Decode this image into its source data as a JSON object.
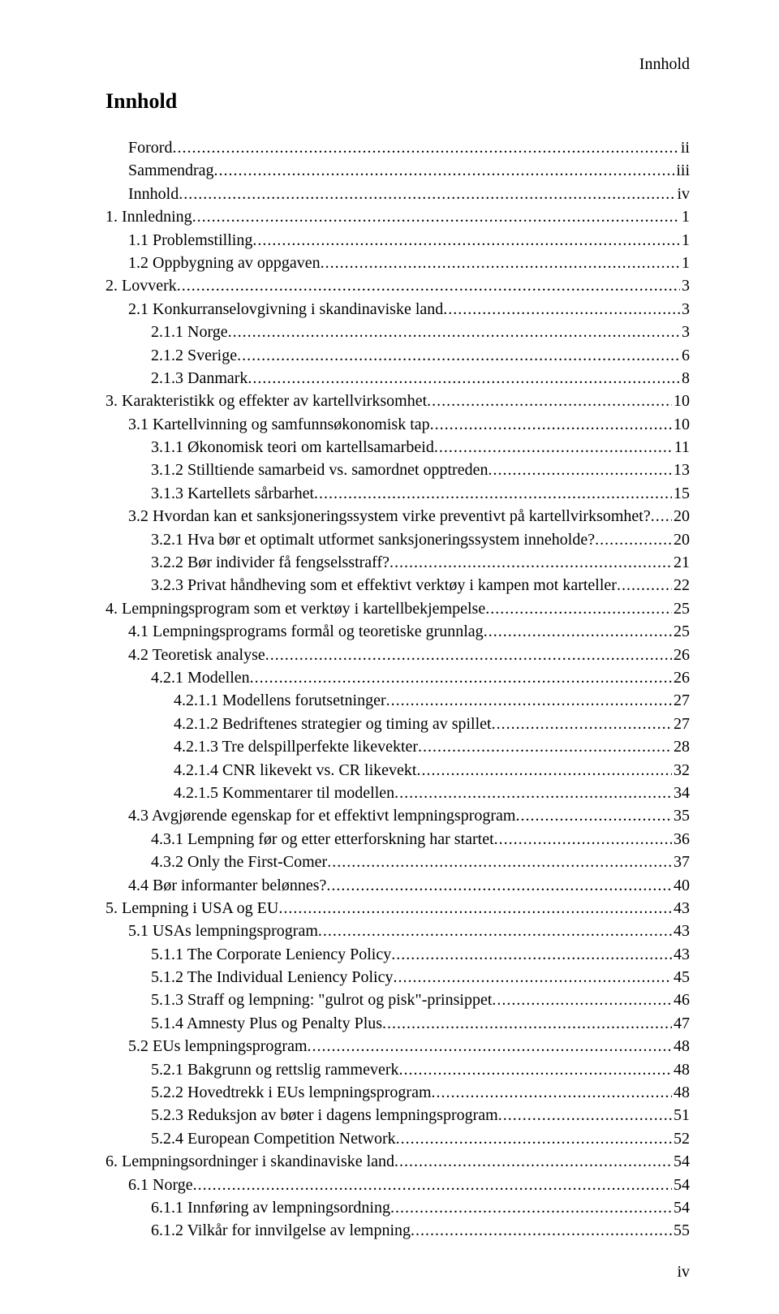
{
  "header": {
    "right_label": "Innhold"
  },
  "title": "Innhold",
  "page_number": "iv",
  "toc": [
    {
      "label": "Forord",
      "page": "ii",
      "indent": 1
    },
    {
      "label": "Sammendrag",
      "page": "iii",
      "indent": 1
    },
    {
      "label": "Innhold",
      "page": "iv",
      "indent": 1
    },
    {
      "label": "1. Innledning",
      "page": "1",
      "indent": 0
    },
    {
      "label": "1.1 Problemstilling",
      "page": "1",
      "indent": 1
    },
    {
      "label": "1.2 Oppbygning av oppgaven",
      "page": "1",
      "indent": 1
    },
    {
      "label": "2. Lovverk",
      "page": "3",
      "indent": 0
    },
    {
      "label": "2.1 Konkurranselovgivning i skandinaviske land",
      "page": "3",
      "indent": 1
    },
    {
      "label": "2.1.1 Norge",
      "page": "3",
      "indent": 2
    },
    {
      "label": "2.1.2 Sverige",
      "page": "6",
      "indent": 2
    },
    {
      "label": "2.1.3 Danmark",
      "page": "8",
      "indent": 2
    },
    {
      "label": "3. Karakteristikk og effekter av kartellvirksomhet",
      "page": "10",
      "indent": 0
    },
    {
      "label": "3.1 Kartellvinning og samfunnsøkonomisk tap",
      "page": "10",
      "indent": 1
    },
    {
      "label": "3.1.1 Økonomisk teori om kartellsamarbeid",
      "page": "11",
      "indent": 2
    },
    {
      "label": "3.1.2 Stilltiende samarbeid vs. samordnet opptreden",
      "page": "13",
      "indent": 2
    },
    {
      "label": "3.1.3 Kartellets sårbarhet",
      "page": "15",
      "indent": 2
    },
    {
      "label": "3.2 Hvordan kan et sanksjoneringssystem virke preventivt på kartellvirksomhet?",
      "page": "20",
      "indent": 1
    },
    {
      "label": "3.2.1 Hva bør et optimalt utformet sanksjoneringssystem inneholde?",
      "page": "20",
      "indent": 2
    },
    {
      "label": "3.2.2 Bør individer få fengselsstraff?",
      "page": "21",
      "indent": 2
    },
    {
      "label": "3.2.3 Privat håndheving som et effektivt verktøy i kampen mot karteller",
      "page": "22",
      "indent": 2
    },
    {
      "label": "4. Lempningsprogram som et verktøy i kartellbekjempelse",
      "page": "25",
      "indent": 0
    },
    {
      "label": "4.1 Lempningsprograms formål og teoretiske grunnlag",
      "page": "25",
      "indent": 1
    },
    {
      "label": "4.2 Teoretisk analyse",
      "page": "26",
      "indent": 1
    },
    {
      "label": "4.2.1 Modellen",
      "page": "26",
      "indent": 2
    },
    {
      "label": "4.2.1.1 Modellens forutsetninger",
      "page": "27",
      "indent": 3
    },
    {
      "label": "4.2.1.2 Bedriftenes strategier og timing av spillet",
      "page": "27",
      "indent": 3
    },
    {
      "label": "4.2.1.3 Tre delspillperfekte likevekter",
      "page": "28",
      "indent": 3
    },
    {
      "label": "4.2.1.4 CNR likevekt vs. CR likevekt",
      "page": "32",
      "indent": 3
    },
    {
      "label": "4.2.1.5 Kommentarer til modellen",
      "page": "34",
      "indent": 3
    },
    {
      "label": "4.3 Avgjørende egenskap for et effektivt lempningsprogram",
      "page": "35",
      "indent": 1
    },
    {
      "label": "4.3.1 Lempning før og etter etterforskning har startet",
      "page": "36",
      "indent": 2
    },
    {
      "label": "4.3.2 Only the First-Comer",
      "page": "37",
      "indent": 2
    },
    {
      "label": "4.4 Bør informanter belønnes?",
      "page": "40",
      "indent": 1
    },
    {
      "label": "5. Lempning i USA og EU",
      "page": "43",
      "indent": 0
    },
    {
      "label": "5.1 USAs lempningsprogram",
      "page": "43",
      "indent": 1
    },
    {
      "label": "5.1.1 The Corporate Leniency Policy",
      "page": "43",
      "indent": 2
    },
    {
      "label": "5.1.2 The Individual Leniency Policy",
      "page": "45",
      "indent": 2
    },
    {
      "label": "5.1.3 Straff og lempning: \"gulrot og pisk\"-prinsippet",
      "page": "46",
      "indent": 2
    },
    {
      "label": "5.1.4 Amnesty Plus og Penalty Plus",
      "page": "47",
      "indent": 2
    },
    {
      "label": "5.2 EUs lempningsprogram",
      "page": "48",
      "indent": 1
    },
    {
      "label": "5.2.1 Bakgrunn og rettslig rammeverk",
      "page": "48",
      "indent": 2
    },
    {
      "label": "5.2.2 Hovedtrekk i EUs lempningsprogram",
      "page": "48",
      "indent": 2
    },
    {
      "label": "5.2.3 Reduksjon av bøter i dagens lempningsprogram",
      "page": "51",
      "indent": 2
    },
    {
      "label": "5.2.4 European Competition Network",
      "page": "52",
      "indent": 2
    },
    {
      "label": "6. Lempningsordninger i skandinaviske land",
      "page": "54",
      "indent": 0
    },
    {
      "label": "6.1 Norge",
      "page": "54",
      "indent": 1
    },
    {
      "label": "6.1.1 Innføring av lempningsordning",
      "page": "54",
      "indent": 2
    },
    {
      "label": "6.1.2 Vilkår for innvilgelse av lempning",
      "page": "55",
      "indent": 2
    }
  ]
}
